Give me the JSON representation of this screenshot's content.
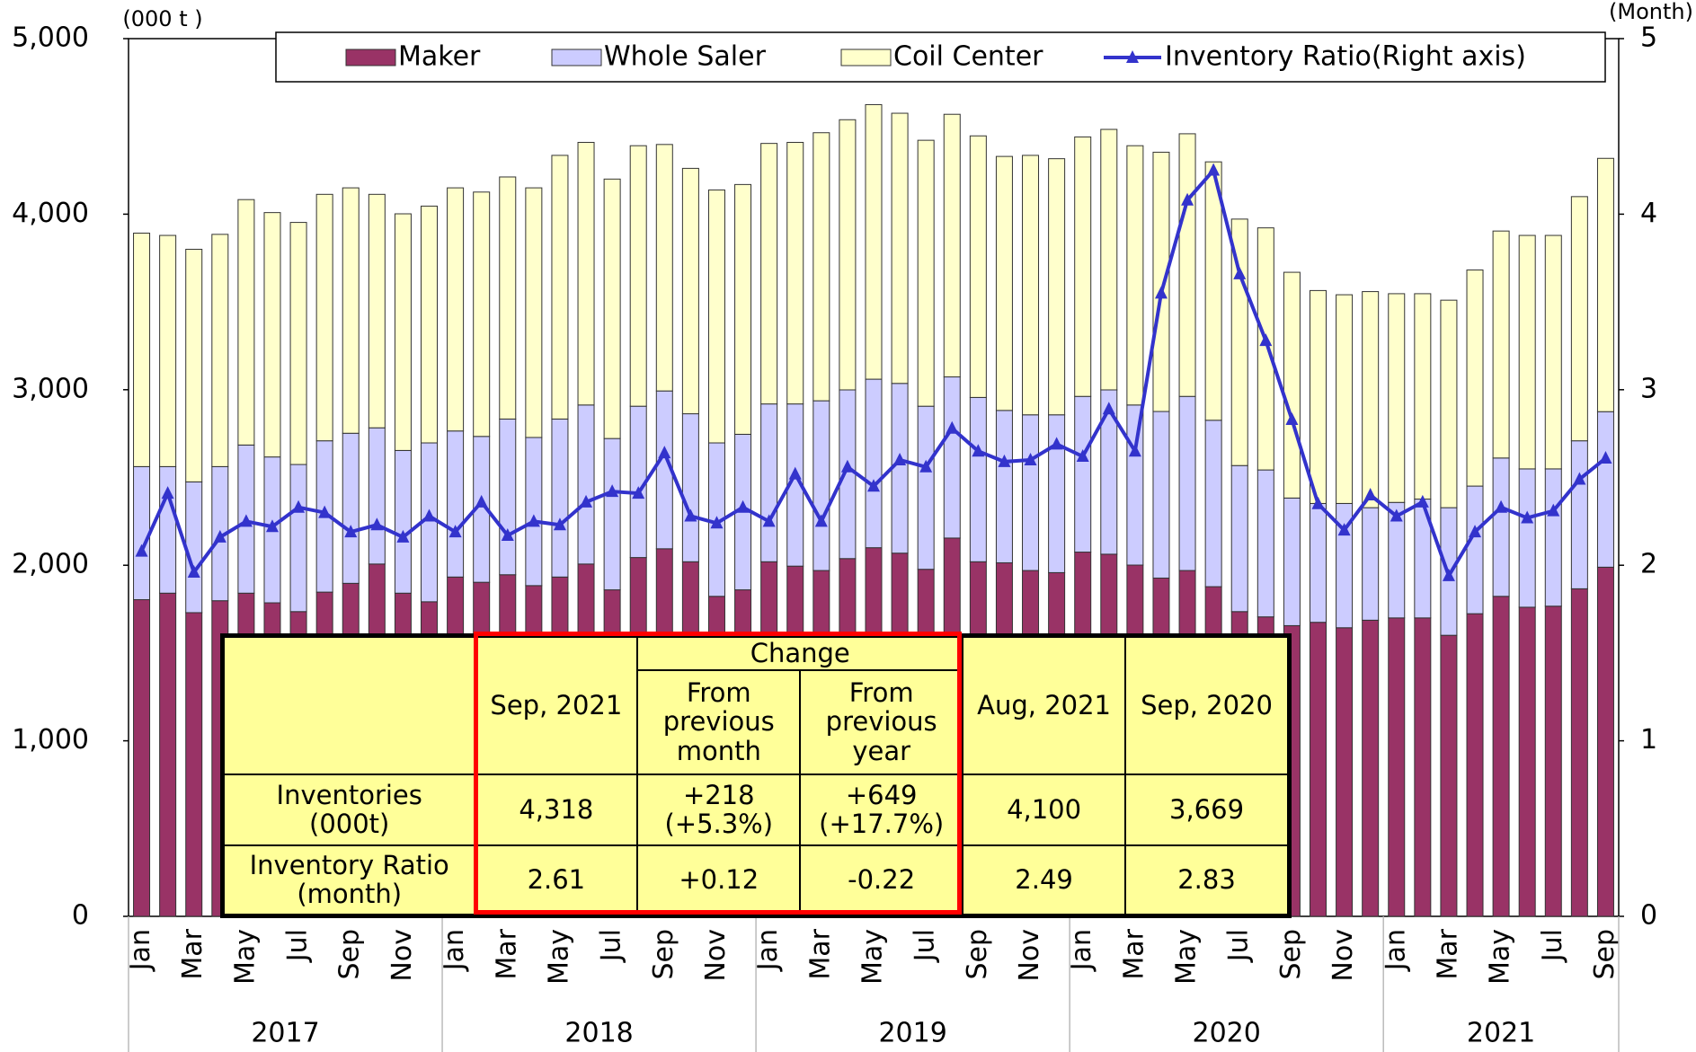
{
  "chart_data": {
    "type": "stacked-bar-line",
    "unit_left": "(000 t )",
    "unit_right": "(Month)",
    "categories": [
      "Jan",
      null,
      "Mar",
      null,
      "May",
      null,
      "Jul",
      null,
      "Sep",
      null,
      "Nov",
      null,
      "Jan",
      null,
      "Mar",
      null,
      "May",
      null,
      "Jul",
      null,
      "Sep",
      null,
      "Nov",
      null,
      "Jan",
      null,
      "Mar",
      null,
      "May",
      null,
      "Jul",
      null,
      "Sep",
      null,
      "Nov",
      null,
      "Jan",
      null,
      "Mar",
      null,
      "May",
      null,
      "Jul",
      null,
      "Sep",
      null,
      "Nov",
      null,
      "Jan",
      null,
      "Mar",
      null,
      "May",
      null,
      "Jul",
      null,
      "Sep"
    ],
    "years": [
      "2017",
      "2018",
      "2019",
      "2020",
      "2021"
    ],
    "series": [
      {
        "name": "Maker",
        "color": "#993366",
        "values": [
          1804,
          1841,
          1730,
          1798,
          1841,
          1786,
          1736,
          1847,
          1897,
          2007,
          1841,
          1792,
          1933,
          1903,
          1946,
          1884,
          1933,
          2007,
          1860,
          2044,
          2094,
          2020,
          1823,
          1860,
          2020,
          1995,
          1970,
          2038,
          2100,
          2069,
          1977,
          2155,
          2020,
          2014,
          1970,
          1958,
          2075,
          2063,
          2001,
          1927,
          1970,
          1878,
          1736,
          1706,
          1656,
          1675,
          1644,
          1687,
          1700,
          1700,
          1601,
          1724,
          1823,
          1761,
          1767,
          1866,
          1989
        ]
      },
      {
        "name": "Whole Saler",
        "color": "#ccccff",
        "values": [
          758,
          721,
          745,
          764,
          844,
          831,
          838,
          862,
          855,
          776,
          813,
          905,
          832,
          831,
          887,
          844,
          900,
          906,
          862,
          862,
          899,
          843,
          874,
          886,
          899,
          924,
          967,
          961,
          960,
          967,
          929,
          918,
          936,
          868,
          887,
          899,
          887,
          936,
          912,
          949,
          992,
          948,
          832,
          837,
          727,
          677,
          708,
          641,
          658,
          677,
          727,
          727,
          788,
          788,
          782,
          843,
          886
        ]
      },
      {
        "name": "Coil Center",
        "color": "#ffffcc",
        "values": [
          1330,
          1317,
          1325,
          1323,
          1398,
          1392,
          1379,
          1404,
          1398,
          1330,
          1348,
          1349,
          1385,
          1392,
          1379,
          1422,
          1502,
          1496,
          1478,
          1484,
          1404,
          1398,
          1441,
          1423,
          1484,
          1490,
          1527,
          1539,
          1564,
          1539,
          1515,
          1496,
          1490,
          1447,
          1478,
          1459,
          1478,
          1484,
          1477,
          1477,
          1496,
          1472,
          1404,
          1379,
          1286,
          1213,
          1189,
          1231,
          1189,
          1170,
          1182,
          1231,
          1293,
          1330,
          1330,
          1391,
          1443
        ]
      },
      {
        "name": "Inventory Ratio(Right axis)",
        "color": "#3333cc",
        "axis": "y2",
        "values": [
          2.08,
          2.41,
          1.96,
          2.16,
          2.25,
          2.22,
          2.33,
          2.3,
          2.19,
          2.23,
          2.16,
          2.28,
          2.19,
          2.36,
          2.17,
          2.25,
          2.23,
          2.36,
          2.42,
          2.41,
          2.64,
          2.28,
          2.24,
          2.33,
          2.25,
          2.52,
          2.25,
          2.56,
          2.45,
          2.6,
          2.56,
          2.78,
          2.65,
          2.59,
          2.6,
          2.69,
          2.62,
          2.89,
          2.65,
          3.55,
          4.08,
          4.25,
          3.66,
          3.28,
          2.83,
          2.35,
          2.2,
          2.4,
          2.28,
          2.36,
          1.94,
          2.19,
          2.33,
          2.27,
          2.31,
          2.49,
          2.61
        ]
      }
    ],
    "ylim": [
      0,
      5000
    ],
    "yticks": [
      0,
      {
        "value": 1000,
        "label": "1,000"
      },
      {
        "value": 2000,
        "label": "2,000"
      },
      {
        "value": 3000,
        "label": "3,000"
      },
      {
        "value": 4000,
        "label": "4,000"
      },
      {
        "value": 5000,
        "label": "5,000"
      }
    ],
    "y2lim": [
      0,
      5
    ],
    "y2ticks": [
      0,
      1,
      2,
      3,
      4,
      5
    ],
    "grid": false,
    "table": {
      "change": "Change",
      "columns": [
        "Sep, 2021",
        "From previous month",
        "From previous year",
        "Aug, 2021",
        "Sep, 2020"
      ],
      "rows": [
        {
          "label": "Inventories (000t)",
          "cells": [
            "4,318",
            "+218 (+5.3%)",
            "+649 (+17.7%)",
            "4,100",
            "3,669"
          ]
        },
        {
          "label": "Inventory Ratio (month)",
          "cells": [
            "2.61",
            "+0.12",
            "-0.22",
            "2.49",
            "2.83"
          ]
        }
      ]
    }
  }
}
